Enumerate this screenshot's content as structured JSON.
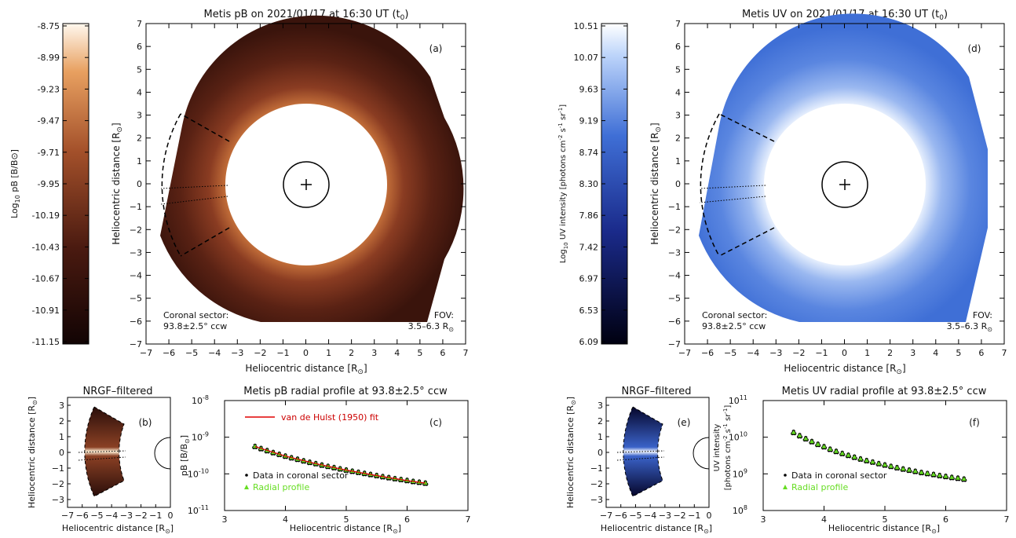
{
  "panels": {
    "a": {
      "title": "Metis pB on 2021/01/17 at 16:30 UT (t",
      "title_sub": "0",
      "title_end": ")",
      "letter": "(a)",
      "xlabel": "Heliocentric distance [R",
      "ylabel": "Heliocentric distance [R",
      "unit_end": "]",
      "sector_label": "Coronal sector:",
      "sector_value": "93.8±2.5° ccw",
      "fov_label": "FOV:",
      "fov_value": "3.5–6.3 R",
      "colorbar": {
        "label_pre": "Log",
        "label_sub": "10",
        "label_post": " pB [B/B",
        "label_end": "]",
        "ticks": [
          "-8.75",
          "-8.99",
          "-9.23",
          "-9.47",
          "-9.71",
          "-9.95",
          "-10.19",
          "-10.43",
          "-10.67",
          "-10.91",
          "-11.15"
        ]
      }
    },
    "b": {
      "title": "NRGF–filtered",
      "letter": "(b)",
      "xlabel": "Heliocentric distance [R",
      "ylabel": "Heliocentric distance [R",
      "unit_end": "]",
      "xticks": [
        "−7",
        "−6",
        "−5",
        "−4",
        "−3",
        "−2",
        "−1",
        "0"
      ],
      "yticks": [
        "3",
        "2",
        "1",
        "0",
        "−1",
        "−2",
        "−3"
      ]
    },
    "c": {
      "title": "Metis pB radial profile at 93.8±2.5° ccw",
      "letter": "(c)",
      "xlabel": "Heliocentric distance [R",
      "unit_end": "]",
      "ylabel": "pB [B/B",
      "fit_label": "van de Hulst (1950) fit",
      "legend_data": "Data in coronal sector",
      "legend_profile": "Radial profile",
      "yticks": [
        {
          "base": "10",
          "exp": "-8"
        },
        {
          "base": "10",
          "exp": "-9"
        },
        {
          "base": "10",
          "exp": "-10"
        },
        {
          "base": "10",
          "exp": "-11"
        }
      ]
    },
    "d": {
      "title": "Metis UV on 2021/01/17 at 16:30 UT (t",
      "title_sub": "0",
      "title_end": ")",
      "letter": "(d)",
      "xlabel": "Heliocentric distance [R",
      "ylabel": "Heliocentric distance [R",
      "unit_end": "]",
      "sector_label": "Coronal sector:",
      "sector_value": "93.8±2.5° ccw",
      "fov_label": "FOV:",
      "fov_value": "3.5–6.3 R",
      "colorbar": {
        "label_pre": "Log",
        "label_sub": "10",
        "label_post": " UV intensity [photons cm",
        "label_sup1": "-2",
        "label_mid1": " s",
        "label_sup2": "-1",
        "label_mid2": " sr",
        "label_sup3": "-1",
        "label_end": "]",
        "ticks": [
          "10.51",
          "10.07",
          "9.63",
          "9.19",
          "8.74",
          "8.30",
          "7.86",
          "7.42",
          "6.97",
          "6.53",
          "6.09"
        ]
      }
    },
    "e": {
      "title": "NRGF–filtered",
      "letter": "(e)",
      "xlabel": "Heliocentric distance [R",
      "ylabel": "Heliocentric distance [R",
      "unit_end": "]",
      "xticks": [
        "−7",
        "−6",
        "−5",
        "−4",
        "−3",
        "−2",
        "−1",
        "0"
      ],
      "yticks": [
        "3",
        "2",
        "1",
        "0",
        "−1",
        "−2",
        "−3"
      ]
    },
    "f": {
      "title": "Metis UV radial profile at 93.8±2.5° ccw",
      "letter": "(f)",
      "xlabel": "Heliocentric distance [R",
      "unit_end": "]",
      "ylabel1": "UV intensity",
      "ylabel2": "[photons cm",
      "legend_data": "Data in coronal sector",
      "legend_profile": "Radial profile",
      "yticks": [
        {
          "base": "10",
          "exp": "11"
        },
        {
          "base": "10",
          "exp": "10"
        },
        {
          "base": "10",
          "exp": "9"
        },
        {
          "base": "10",
          "exp": "8"
        }
      ]
    }
  },
  "big_ticks": [
    "−7",
    "−6",
    "−5",
    "−4",
    "−3",
    "−2",
    "−1",
    "0",
    "1",
    "2",
    "3",
    "4",
    "5",
    "6",
    "7"
  ],
  "big_yticks": [
    "7",
    "6",
    "5",
    "4",
    "3",
    "2",
    "1",
    "0",
    "−1",
    "−2",
    "−3",
    "−4",
    "−5",
    "−6",
    "−7"
  ],
  "profile_xticks": [
    "3",
    "4",
    "5",
    "6",
    "7"
  ],
  "colors": {
    "pb_dark": "#1a0808",
    "pb_mid": "#7a3a1e",
    "pb_bright": "#f4c07a",
    "uv_dark": "#0a0a3a",
    "uv_mid": "#4a78d8",
    "uv_bright": "#eaf2ff",
    "fit_line": "#e00000",
    "profile_marker": "#66dd22"
  },
  "chart_data": [
    {
      "type": "scatter",
      "title": "Metis pB radial profile at 93.8±2.5° ccw",
      "xlabel": "Heliocentric distance [R⊙]",
      "ylabel": "pB [B/B⊙]",
      "xlim": [
        3,
        7
      ],
      "ylim": [
        1e-11,
        1e-08
      ],
      "yscale": "log",
      "series": [
        {
          "name": "Radial profile",
          "x": [
            3.5,
            3.6,
            3.7,
            3.8,
            3.9,
            4.0,
            4.1,
            4.2,
            4.3,
            4.4,
            4.5,
            4.6,
            4.7,
            4.8,
            4.9,
            5.0,
            5.1,
            5.2,
            5.3,
            5.4,
            5.5,
            5.6,
            5.7,
            5.8,
            5.9,
            6.0,
            6.1,
            6.2,
            6.3
          ],
          "y": [
            5.6e-10,
            4.9e-10,
            4.3e-10,
            3.8e-10,
            3.4e-10,
            3.05e-10,
            2.75e-10,
            2.5e-10,
            2.27e-10,
            2.07e-10,
            1.9e-10,
            1.74e-10,
            1.6e-10,
            1.48e-10,
            1.37e-10,
            1.27e-10,
            1.18e-10,
            1.1e-10,
            1.03e-10,
            9.6e-11,
            9e-11,
            8.4e-11,
            7.9e-11,
            7.4e-11,
            7e-11,
            6.6e-11,
            6.2e-11,
            5.9e-11,
            5.6e-11
          ]
        },
        {
          "name": "van de Hulst (1950) fit",
          "x": [
            3.5,
            4.0,
            4.5,
            5.0,
            5.5,
            6.0,
            6.3
          ],
          "y": [
            5.6e-10,
            3.05e-10,
            1.9e-10,
            1.27e-10,
            9e-11,
            6.6e-11,
            5.6e-11
          ]
        }
      ]
    },
    {
      "type": "scatter",
      "title": "Metis UV radial profile at 93.8±2.5° ccw",
      "xlabel": "Heliocentric distance [R⊙]",
      "ylabel": "UV intensity [photons cm⁻² s⁻¹ sr⁻¹]",
      "xlim": [
        3,
        7
      ],
      "ylim": [
        100000000.0,
        100000000000.0
      ],
      "yscale": "log",
      "series": [
        {
          "name": "Radial profile",
          "x": [
            3.5,
            3.6,
            3.7,
            3.8,
            3.9,
            4.0,
            4.1,
            4.2,
            4.3,
            4.4,
            4.5,
            4.6,
            4.7,
            4.8,
            4.9,
            5.0,
            5.1,
            5.2,
            5.3,
            5.4,
            5.5,
            5.6,
            5.7,
            5.8,
            5.9,
            6.0,
            6.1,
            6.2,
            6.3
          ],
          "y": [
            13500000000.0,
            11000000000.0,
            9100000000.0,
            7600000000.0,
            6400000000.0,
            5500000000.0,
            4700000000.0,
            4100000000.0,
            3600000000.0,
            3200000000.0,
            2850000000.0,
            2550000000.0,
            2300000000.0,
            2100000000.0,
            1900000000.0,
            1750000000.0,
            1600000000.0,
            1470000000.0,
            1360000000.0,
            1260000000.0,
            1170000000.0,
            1090000000.0,
            1020000000.0,
            960000000.0,
            900000000.0,
            850000000.0,
            800000000.0,
            760000000.0,
            720000000.0
          ]
        }
      ]
    }
  ]
}
